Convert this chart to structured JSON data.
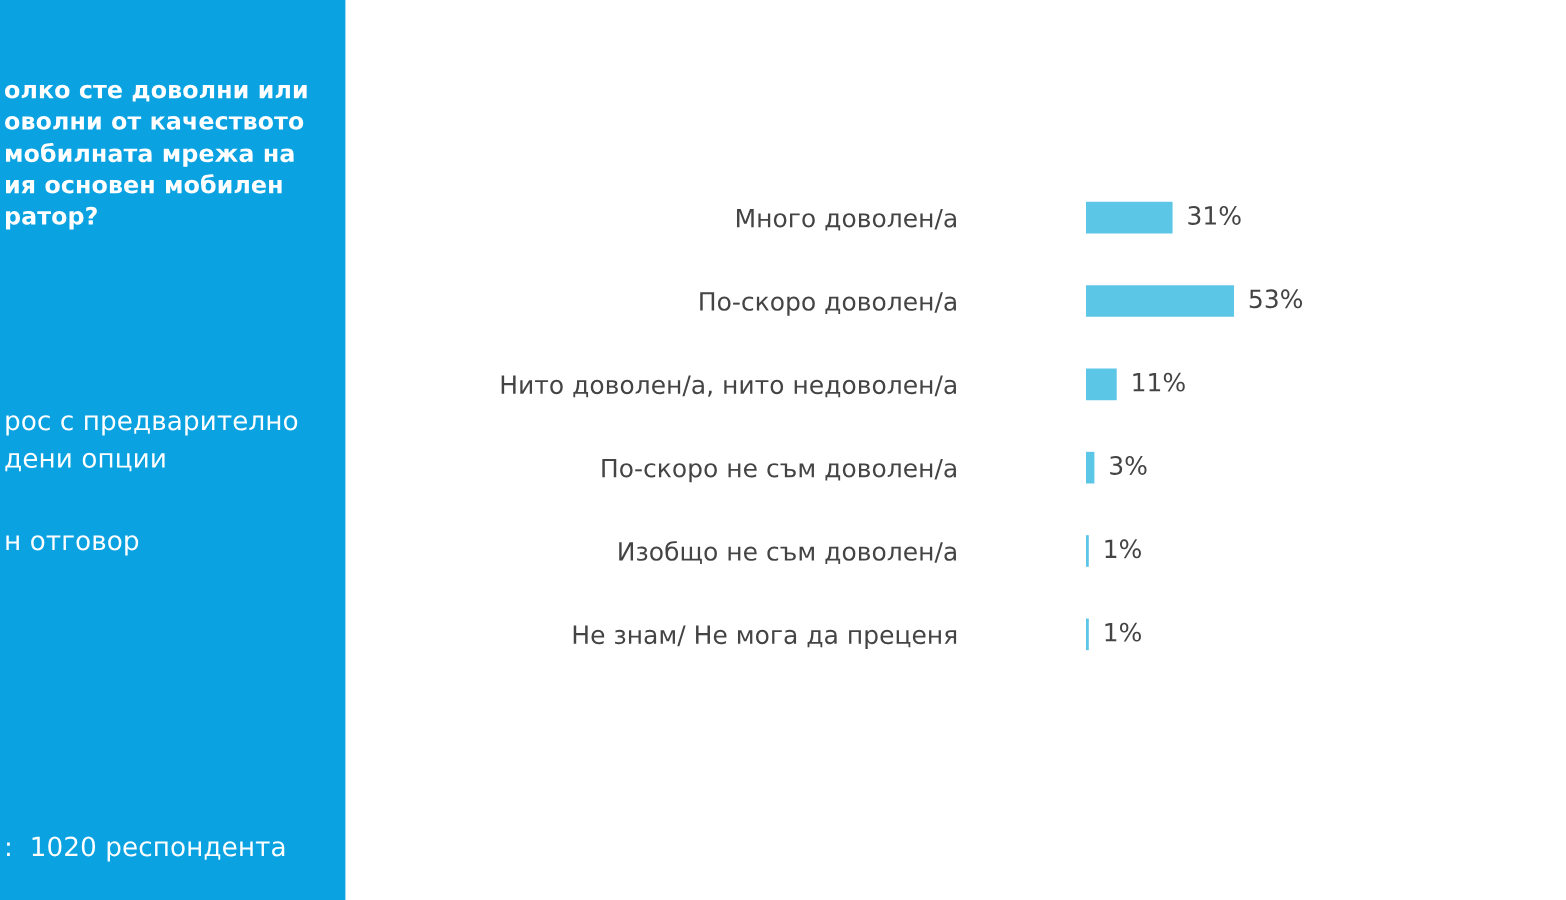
{
  "chart_data": {
    "type": "bar",
    "orientation": "horizontal",
    "title": "олко сте доволни или\nоволни от качеството\nмобилната мрежа на\nия основен мобилен\nратор?",
    "annotations": [
      "рос с предварително\nдени опции",
      "н отговор",
      ":  1020 респондента"
    ],
    "categories": [
      "Много доволен/а",
      "По-скоро доволен/а",
      "Нито доволен/а, нито недоволен/а",
      "По-скоро не съм доволен/а",
      "Изобщо не съм доволен/а",
      "Не знам/ Не мога да преценя"
    ],
    "values": [
      31,
      53,
      11,
      3,
      1,
      1
    ],
    "color": "#5cc6e6",
    "value_labels": [
      "31%",
      "53%",
      "11%",
      "3%",
      "1%",
      "1%"
    ]
  }
}
